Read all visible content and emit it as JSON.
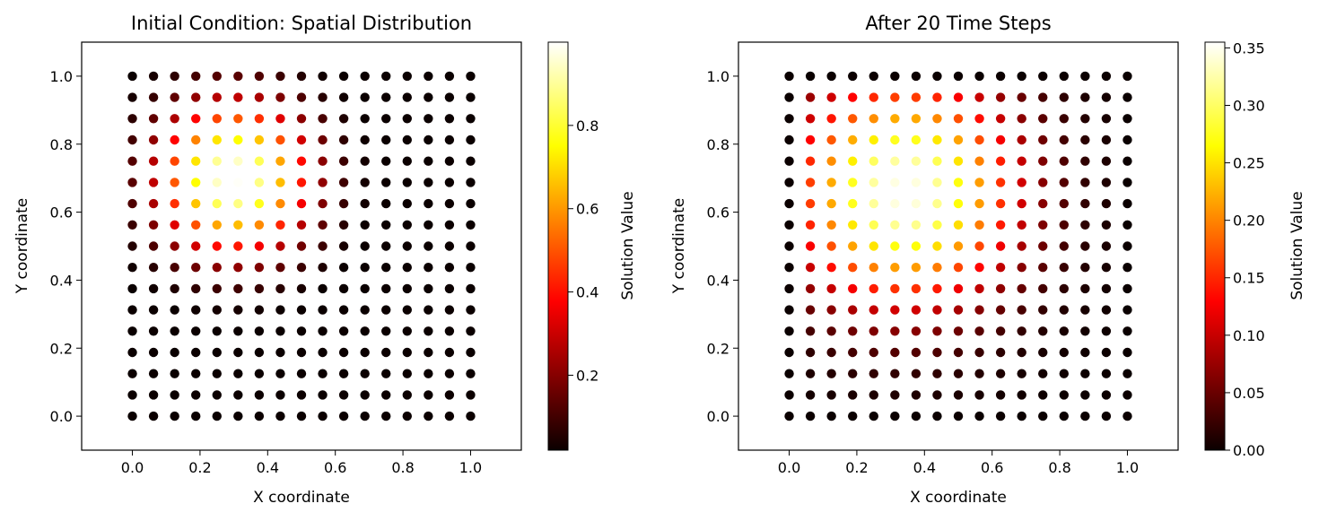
{
  "chart_data": [
    {
      "type": "scatter",
      "title": "Initial Condition: Spatial Distribution",
      "xlabel": "X coordinate",
      "ylabel": "Y coordinate",
      "xlim": [
        -0.15,
        1.15
      ],
      "ylim": [
        -0.1,
        1.1
      ],
      "xticks": [
        "0.0",
        "0.2",
        "0.4",
        "0.6",
        "0.8",
        "1.0"
      ],
      "yticks": [
        "0.0",
        "0.2",
        "0.4",
        "0.6",
        "0.8",
        "1.0"
      ],
      "grid": false,
      "colormap": "hot",
      "grid_points": {
        "x_start": 0.0,
        "x_end": 1.0,
        "y_start": 0.0,
        "y_end": 1.0,
        "count_per_axis": 17
      },
      "value_field": {
        "shape": "gaussian",
        "center_x": 0.3,
        "center_y": 0.7,
        "sigma": 0.15,
        "peak": 1.0
      },
      "colorbar": {
        "label": "Solution Value",
        "min": 0.02,
        "max": 1.0,
        "ticks": [
          "0.2",
          "0.4",
          "0.6",
          "0.8"
        ]
      }
    },
    {
      "type": "scatter",
      "title": "After 20 Time Steps",
      "xlabel": "X coordinate",
      "ylabel": "Y coordinate",
      "xlim": [
        -0.15,
        1.15
      ],
      "ylim": [
        -0.1,
        1.1
      ],
      "xticks": [
        "0.0",
        "0.2",
        "0.4",
        "0.6",
        "0.8",
        "1.0"
      ],
      "yticks": [
        "0.0",
        "0.2",
        "0.4",
        "0.6",
        "0.8",
        "1.0"
      ],
      "grid": false,
      "colormap": "hot",
      "grid_points": {
        "x_start": 0.0,
        "x_end": 1.0,
        "y_start": 0.0,
        "y_end": 1.0,
        "count_per_axis": 17
      },
      "value_field": {
        "shape": "gaussian",
        "center_x": 0.34,
        "center_y": 0.66,
        "sigma": 0.225,
        "peak": 0.35,
        "zero_boundary": true
      },
      "colorbar": {
        "label": "Solution Value",
        "min": 0.0,
        "max": 0.355,
        "ticks": [
          "0.00",
          "0.05",
          "0.10",
          "0.15",
          "0.20",
          "0.25",
          "0.30",
          "0.35"
        ]
      }
    }
  ]
}
